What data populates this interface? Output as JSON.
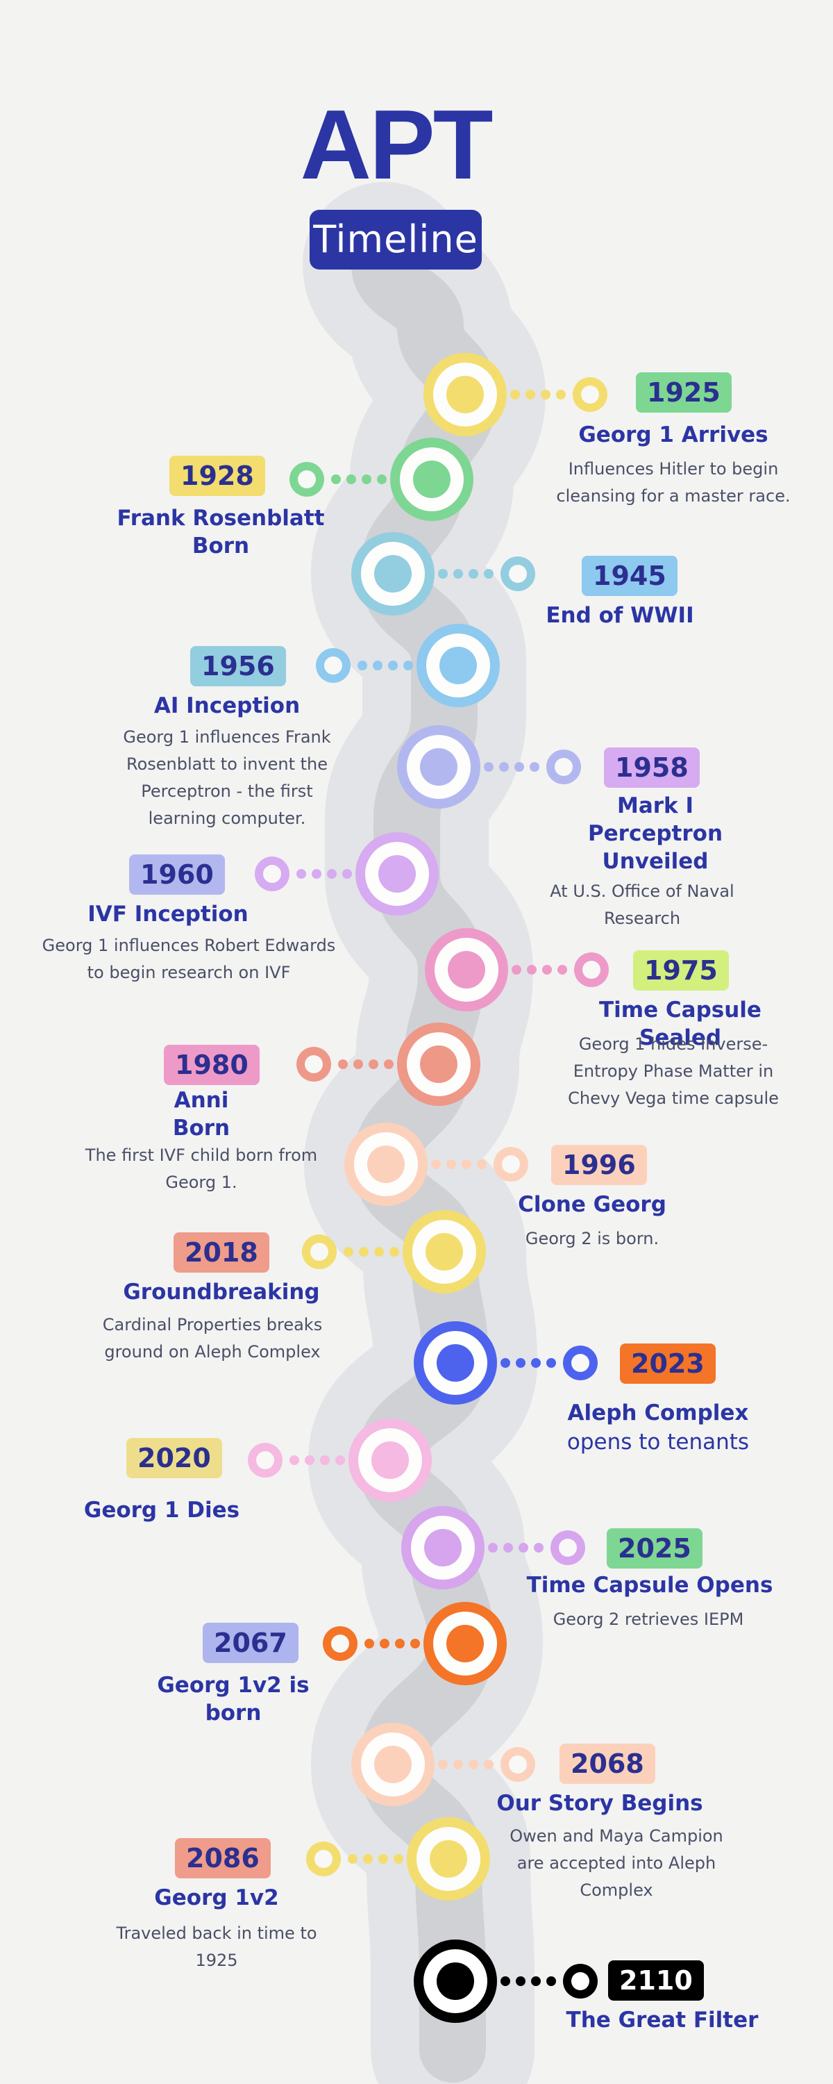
{
  "header": {
    "title": "APT",
    "subtitle": "Timeline"
  },
  "events": [
    {
      "year": "1925",
      "title": "Georg 1 Arrives",
      "desc": "Influences Hitler to begin cleansing for a master race.",
      "side": "right",
      "color": "#f3dd6e",
      "badge": "#7ed693"
    },
    {
      "year": "1928",
      "title": "Frank Rosenblatt Born",
      "desc": "",
      "side": "left",
      "color": "#7ed693",
      "badge": "#f3dd6e"
    },
    {
      "year": "1945",
      "title": "End of WWII",
      "desc": "",
      "side": "right",
      "color": "#93cde0",
      "badge": "#8ec9ef"
    },
    {
      "year": "1956",
      "title": "AI Inception",
      "desc": "Georg 1 influences Frank Rosenblatt to invent the Perceptron - the first learning computer.",
      "side": "left",
      "color": "#8ec9ef",
      "badge": "#93cde0"
    },
    {
      "year": "1958",
      "title": "Mark I Perceptron Unveiled",
      "desc": "At U.S. Office of Naval Research",
      "side": "right",
      "color": "#b2b8ef",
      "badge": "#d6abf1"
    },
    {
      "year": "1960",
      "title": "IVF Inception",
      "desc": "Georg 1 influences Robert Edwards to begin research on IVF",
      "side": "left",
      "color": "#d6abf1",
      "badge": "#b2b8ef"
    },
    {
      "year": "1975",
      "title": "Time Capsule Sealed",
      "desc": "Georg 1 hides Inverse-Entropy Phase Matter in Chevy Vega time capsule",
      "side": "right",
      "color": "#ed9ac9",
      "badge": "#d3ef7e"
    },
    {
      "year": "1980",
      "title": "Anni Born",
      "desc": "The first IVF child born from Georg 1.",
      "side": "left",
      "color": "#ee9888",
      "badge": "#ee9ac9"
    },
    {
      "year": "1996",
      "title": "Clone Georg",
      "desc": "Georg 2 is born.",
      "side": "right",
      "color": "#fcd1bb",
      "badge": "#fcd1bb"
    },
    {
      "year": "2018",
      "title": "Groundbreaking",
      "desc": "Cardinal Properties breaks ground on Aleph Complex",
      "side": "left",
      "color": "#f3dd6e",
      "badge": "#ef9c8a"
    },
    {
      "year": "2023",
      "title": "Aleph Complex",
      "title2": "opens to tenants",
      "desc": "",
      "side": "right",
      "color": "#4d63ee",
      "badge": "#f47428"
    },
    {
      "year": "2020",
      "title": "Georg 1 Dies",
      "desc": "",
      "side": "left",
      "color": "#f5b9e2",
      "badge": "#eede8c"
    },
    {
      "year": "2025",
      "title": "Time Capsule Opens",
      "desc": "Georg 2 retrieves IEPM",
      "side": "right",
      "color": "#d6a5ee",
      "badge": "#7ed693"
    },
    {
      "year": "2067",
      "title": "Georg 1v2 is born",
      "desc": "",
      "side": "left",
      "color": "#f47428",
      "badge": "#aeb4ee"
    },
    {
      "year": "2068",
      "title": "Our Story Begins",
      "desc": "Owen and Maya Campion are accepted into Aleph Complex",
      "side": "right",
      "color": "#fcd1bb",
      "badge": "#fcd1bb"
    },
    {
      "year": "2086",
      "title": "Georg 1v2",
      "desc": "Traveled back in time to 1925",
      "side": "left",
      "color": "#f3dd6e",
      "badge": "#ef9c8a"
    },
    {
      "year": "2110",
      "title": "The Great Filter",
      "desc": "",
      "side": "right",
      "color": "#000000",
      "badge": "#000000"
    }
  ]
}
